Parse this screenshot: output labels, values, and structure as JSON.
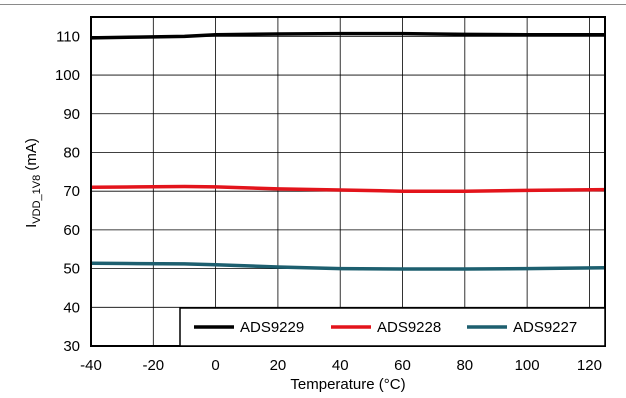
{
  "chart_data": {
    "type": "line",
    "xlabel": "Temperature (°C)",
    "ylabel": {
      "main": "I",
      "subscript": "VDD_1V8",
      "suffix": " (mA)"
    },
    "xlim": [
      -40,
      125
    ],
    "ylim": [
      30,
      115
    ],
    "xticks": [
      -40,
      -20,
      0,
      20,
      40,
      60,
      80,
      100,
      120
    ],
    "yticks": [
      30,
      40,
      50,
      60,
      70,
      80,
      90,
      100,
      110
    ],
    "grid": true,
    "legend_position": "bottom-right",
    "series": [
      {
        "name": "ADS9229",
        "color": "#000000",
        "x": [
          -40,
          -25,
          -10,
          0,
          20,
          40,
          60,
          80,
          100,
          125
        ],
        "y": [
          109.6,
          109.8,
          110.0,
          110.4,
          110.6,
          110.7,
          110.7,
          110.5,
          110.4,
          110.4
        ]
      },
      {
        "name": "ADS9228",
        "color": "#e3141b",
        "x": [
          -40,
          -25,
          -10,
          0,
          20,
          40,
          60,
          80,
          100,
          125
        ],
        "y": [
          71.0,
          71.1,
          71.2,
          71.1,
          70.6,
          70.3,
          70.0,
          70.0,
          70.2,
          70.4
        ]
      },
      {
        "name": "ADS9227",
        "color": "#1d5f6f",
        "x": [
          -40,
          -25,
          -10,
          0,
          20,
          40,
          60,
          80,
          100,
          125
        ],
        "y": [
          51.4,
          51.3,
          51.2,
          51.0,
          50.4,
          50.0,
          49.9,
          49.9,
          50.0,
          50.2
        ]
      }
    ]
  }
}
